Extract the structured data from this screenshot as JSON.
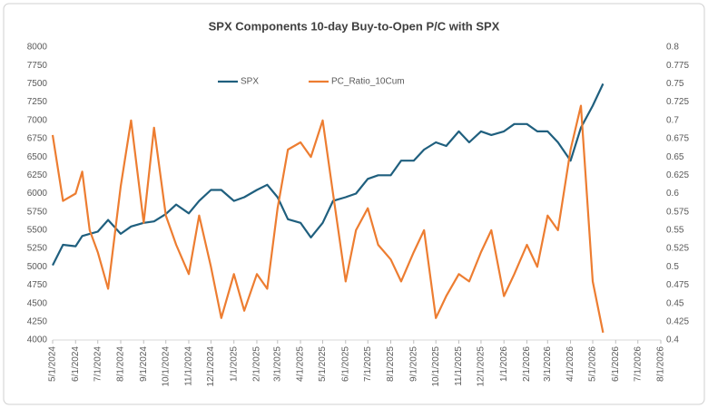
{
  "chart_data": {
    "type": "line",
    "title": "SPX Components 10-day Buy-to-Open P/C with SPX",
    "x": [
      "5/1/2024",
      "5/15/2024",
      "6/1/2024",
      "6/10/2024",
      "6/20/2024",
      "7/1/2024",
      "7/15/2024",
      "8/1/2024",
      "8/15/2024",
      "9/1/2024",
      "9/15/2024",
      "10/1/2024",
      "10/15/2024",
      "11/1/2024",
      "11/15/2024",
      "12/1/2024",
      "12/15/2024",
      "1/1/2025",
      "1/15/2025",
      "2/1/2025",
      "2/15/2025",
      "3/1/2025",
      "3/15/2025",
      "4/1/2025",
      "4/15/2025",
      "5/1/2025",
      "5/15/2025",
      "6/1/2025",
      "6/15/2025",
      "7/1/2025",
      "7/15/2025",
      "8/1/2025",
      "8/15/2025",
      "9/1/2025",
      "9/15/2025",
      "10/1/2025",
      "10/15/2025",
      "11/1/2025",
      "11/15/2025",
      "12/1/2025",
      "12/15/2025",
      "1/1/2026",
      "1/15/2026",
      "2/1/2026",
      "2/15/2026",
      "3/1/2026",
      "3/15/2026",
      "4/1/2026",
      "4/15/2026",
      "5/1/2026",
      "5/15/2026"
    ],
    "series": [
      {
        "name": "SPX",
        "color": "#1f5f7e",
        "axis": "y",
        "values": [
          5020,
          5300,
          5280,
          5420,
          5450,
          5480,
          5640,
          5450,
          5550,
          5600,
          5620,
          5720,
          5850,
          5730,
          5900,
          6050,
          6050,
          5900,
          5950,
          6050,
          6120,
          5950,
          5650,
          5600,
          5400,
          5600,
          5900,
          5950,
          6000,
          6200,
          6250,
          6250,
          6450,
          6450,
          6600,
          6700,
          6650,
          6850,
          6700,
          6850,
          6800,
          6850,
          6950,
          6950,
          6850,
          6850,
          6700,
          6450,
          6900,
          7200,
          7500
        ]
      },
      {
        "name": "PC_Ratio_10Cum",
        "color": "#ed7d31",
        "axis": "y2",
        "values": [
          0.68,
          0.59,
          0.6,
          0.63,
          0.55,
          0.52,
          0.47,
          0.61,
          0.7,
          0.56,
          0.69,
          0.57,
          0.53,
          0.49,
          0.57,
          0.5,
          0.43,
          0.49,
          0.44,
          0.49,
          0.47,
          0.58,
          0.66,
          0.67,
          0.65,
          0.7,
          0.6,
          0.48,
          0.55,
          0.58,
          0.53,
          0.51,
          0.48,
          0.52,
          0.55,
          0.43,
          0.46,
          0.49,
          0.48,
          0.52,
          0.55,
          0.46,
          0.49,
          0.53,
          0.5,
          0.57,
          0.55,
          0.66,
          0.72,
          0.48,
          0.41
        ]
      }
    ],
    "xlim": [
      "5/1/2024",
      "8/1/2026"
    ],
    "xticks": [
      "5/1/2024",
      "6/1/2024",
      "7/1/2024",
      "8/1/2024",
      "9/1/2024",
      "10/1/2024",
      "11/1/2024",
      "12/1/2024",
      "1/1/2025",
      "2/1/2025",
      "3/1/2025",
      "4/1/2025",
      "5/1/2025",
      "6/1/2025",
      "7/1/2025",
      "8/1/2025",
      "9/1/2025",
      "10/1/2025",
      "11/1/2025",
      "12/1/2025",
      "1/1/2026",
      "2/1/2026",
      "3/1/2026",
      "4/1/2026",
      "5/1/2026",
      "6/1/2026",
      "7/1/2026",
      "8/1/2026"
    ],
    "ylim": [
      4000,
      8000
    ],
    "yticks": [
      4000,
      4250,
      4500,
      4750,
      5000,
      5250,
      5500,
      5750,
      6000,
      6250,
      6500,
      6750,
      7000,
      7250,
      7500,
      7750,
      8000
    ],
    "y2lim": [
      0.4,
      0.8
    ],
    "y2ticks": [
      0.4,
      0.425,
      0.45,
      0.475,
      0.5,
      0.525,
      0.55,
      0.575,
      0.6,
      0.625,
      0.65,
      0.675,
      0.7,
      0.725,
      0.75,
      0.775,
      0.8
    ],
    "legend": "top",
    "grid": false
  }
}
